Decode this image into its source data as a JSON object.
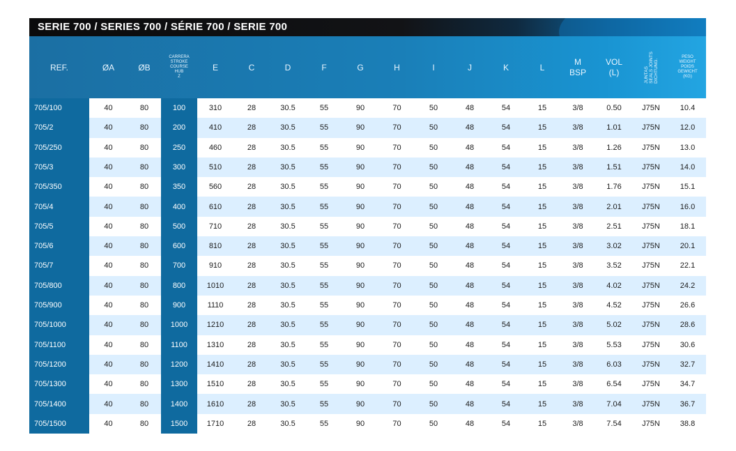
{
  "banner": {
    "title": "SERIE 700 / SERIES 700 / SÉRIE 700 / SERIE 700"
  },
  "headers": {
    "ref": "REF.",
    "a": "ØA",
    "b": "ØB",
    "stroke_lines": [
      "CARRERA",
      "STROKE",
      "COURSE",
      "HUB",
      "Z"
    ],
    "e": "E",
    "c": "C",
    "d": "D",
    "f": "F",
    "g": "G",
    "h": "H",
    "i": "I",
    "j": "J",
    "k": "K",
    "l": "L",
    "m_lines": [
      "M",
      "BSP"
    ],
    "vol_lines": [
      "VOL",
      "(L)"
    ],
    "seals_lines": [
      "JUNTAS",
      "SEALS JOINTS",
      "DICHTUNG."
    ],
    "weight_lines": [
      "PESO",
      "WEIGHT",
      "POIDS",
      "GEWICHT",
      "(kg)"
    ]
  },
  "rows": [
    {
      "ref": "705/100",
      "a": "40",
      "b": "80",
      "z": "100",
      "e": "310",
      "c": "28",
      "d": "30.5",
      "f": "55",
      "g": "90",
      "h": "70",
      "i": "50",
      "j": "48",
      "k": "54",
      "l": "15",
      "m": "3/8",
      "vol": "0.50",
      "seal": "J75N",
      "kg": "10.4"
    },
    {
      "ref": "705/2",
      "a": "40",
      "b": "80",
      "z": "200",
      "e": "410",
      "c": "28",
      "d": "30.5",
      "f": "55",
      "g": "90",
      "h": "70",
      "i": "50",
      "j": "48",
      "k": "54",
      "l": "15",
      "m": "3/8",
      "vol": "1.01",
      "seal": "J75N",
      "kg": "12.0"
    },
    {
      "ref": "705/250",
      "a": "40",
      "b": "80",
      "z": "250",
      "e": "460",
      "c": "28",
      "d": "30.5",
      "f": "55",
      "g": "90",
      "h": "70",
      "i": "50",
      "j": "48",
      "k": "54",
      "l": "15",
      "m": "3/8",
      "vol": "1.26",
      "seal": "J75N",
      "kg": "13.0"
    },
    {
      "ref": "705/3",
      "a": "40",
      "b": "80",
      "z": "300",
      "e": "510",
      "c": "28",
      "d": "30.5",
      "f": "55",
      "g": "90",
      "h": "70",
      "i": "50",
      "j": "48",
      "k": "54",
      "l": "15",
      "m": "3/8",
      "vol": "1.51",
      "seal": "J75N",
      "kg": "14.0"
    },
    {
      "ref": "705/350",
      "a": "40",
      "b": "80",
      "z": "350",
      "e": "560",
      "c": "28",
      "d": "30.5",
      "f": "55",
      "g": "90",
      "h": "70",
      "i": "50",
      "j": "48",
      "k": "54",
      "l": "15",
      "m": "3/8",
      "vol": "1.76",
      "seal": "J75N",
      "kg": "15.1"
    },
    {
      "ref": "705/4",
      "a": "40",
      "b": "80",
      "z": "400",
      "e": "610",
      "c": "28",
      "d": "30.5",
      "f": "55",
      "g": "90",
      "h": "70",
      "i": "50",
      "j": "48",
      "k": "54",
      "l": "15",
      "m": "3/8",
      "vol": "2.01",
      "seal": "J75N",
      "kg": "16.0"
    },
    {
      "ref": "705/5",
      "a": "40",
      "b": "80",
      "z": "500",
      "e": "710",
      "c": "28",
      "d": "30.5",
      "f": "55",
      "g": "90",
      "h": "70",
      "i": "50",
      "j": "48",
      "k": "54",
      "l": "15",
      "m": "3/8",
      "vol": "2.51",
      "seal": "J75N",
      "kg": "18.1"
    },
    {
      "ref": "705/6",
      "a": "40",
      "b": "80",
      "z": "600",
      "e": "810",
      "c": "28",
      "d": "30.5",
      "f": "55",
      "g": "90",
      "h": "70",
      "i": "50",
      "j": "48",
      "k": "54",
      "l": "15",
      "m": "3/8",
      "vol": "3.02",
      "seal": "J75N",
      "kg": "20.1"
    },
    {
      "ref": "705/7",
      "a": "40",
      "b": "80",
      "z": "700",
      "e": "910",
      "c": "28",
      "d": "30.5",
      "f": "55",
      "g": "90",
      "h": "70",
      "i": "50",
      "j": "48",
      "k": "54",
      "l": "15",
      "m": "3/8",
      "vol": "3.52",
      "seal": "J75N",
      "kg": "22.1"
    },
    {
      "ref": "705/800",
      "a": "40",
      "b": "80",
      "z": "800",
      "e": "1010",
      "c": "28",
      "d": "30.5",
      "f": "55",
      "g": "90",
      "h": "70",
      "i": "50",
      "j": "48",
      "k": "54",
      "l": "15",
      "m": "3/8",
      "vol": "4.02",
      "seal": "J75N",
      "kg": "24.2"
    },
    {
      "ref": "705/900",
      "a": "40",
      "b": "80",
      "z": "900",
      "e": "1110",
      "c": "28",
      "d": "30.5",
      "f": "55",
      "g": "90",
      "h": "70",
      "i": "50",
      "j": "48",
      "k": "54",
      "l": "15",
      "m": "3/8",
      "vol": "4.52",
      "seal": "J75N",
      "kg": "26.6"
    },
    {
      "ref": "705/1000",
      "a": "40",
      "b": "80",
      "z": "1000",
      "e": "1210",
      "c": "28",
      "d": "30.5",
      "f": "55",
      "g": "90",
      "h": "70",
      "i": "50",
      "j": "48",
      "k": "54",
      "l": "15",
      "m": "3/8",
      "vol": "5.02",
      "seal": "J75N",
      "kg": "28.6"
    },
    {
      "ref": "705/1100",
      "a": "40",
      "b": "80",
      "z": "1100",
      "e": "1310",
      "c": "28",
      "d": "30.5",
      "f": "55",
      "g": "90",
      "h": "70",
      "i": "50",
      "j": "48",
      "k": "54",
      "l": "15",
      "m": "3/8",
      "vol": "5.53",
      "seal": "J75N",
      "kg": "30.6"
    },
    {
      "ref": "705/1200",
      "a": "40",
      "b": "80",
      "z": "1200",
      "e": "1410",
      "c": "28",
      "d": "30.5",
      "f": "55",
      "g": "90",
      "h": "70",
      "i": "50",
      "j": "48",
      "k": "54",
      "l": "15",
      "m": "3/8",
      "vol": "6.03",
      "seal": "J75N",
      "kg": "32.7"
    },
    {
      "ref": "705/1300",
      "a": "40",
      "b": "80",
      "z": "1300",
      "e": "1510",
      "c": "28",
      "d": "30.5",
      "f": "55",
      "g": "90",
      "h": "70",
      "i": "50",
      "j": "48",
      "k": "54",
      "l": "15",
      "m": "3/8",
      "vol": "6.54",
      "seal": "J75N",
      "kg": "34.7"
    },
    {
      "ref": "705/1400",
      "a": "40",
      "b": "80",
      "z": "1400",
      "e": "1610",
      "c": "28",
      "d": "30.5",
      "f": "55",
      "g": "90",
      "h": "70",
      "i": "50",
      "j": "48",
      "k": "54",
      "l": "15",
      "m": "3/8",
      "vol": "7.04",
      "seal": "J75N",
      "kg": "36.7"
    },
    {
      "ref": "705/1500",
      "a": "40",
      "b": "80",
      "z": "1500",
      "e": "1710",
      "c": "28",
      "d": "30.5",
      "f": "55",
      "g": "90",
      "h": "70",
      "i": "50",
      "j": "48",
      "k": "54",
      "l": "15",
      "m": "3/8",
      "vol": "7.54",
      "seal": "J75N",
      "kg": "38.8"
    }
  ],
  "colors": {
    "dark_blue": "#0f6a9f",
    "light_row": "#dcefff",
    "white_row": "#ffffff"
  }
}
